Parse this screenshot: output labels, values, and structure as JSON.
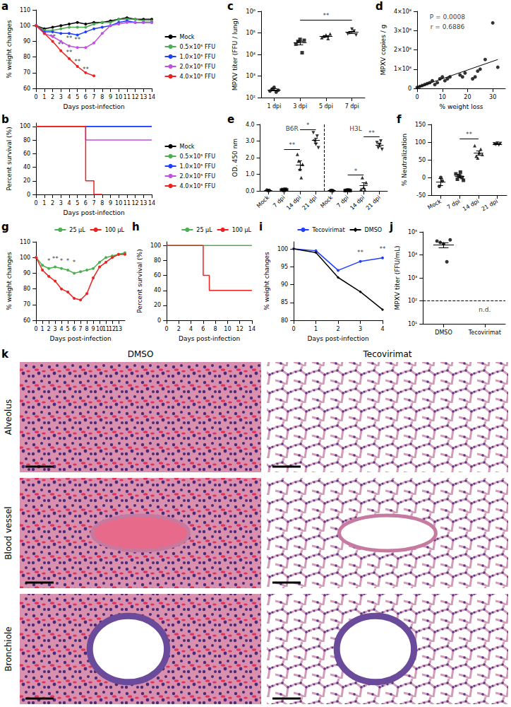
{
  "chart_data": [
    {
      "panel": "a",
      "type": "line",
      "marker": "circle",
      "grid": false,
      "legend": "right",
      "x": [
        0,
        1,
        2,
        3,
        4,
        5,
        6,
        7,
        8,
        9,
        10,
        11,
        12,
        13,
        14
      ],
      "xlim": [
        0,
        14
      ],
      "xticks": [
        0,
        1,
        2,
        3,
        4,
        5,
        6,
        7,
        8,
        9,
        10,
        11,
        12,
        13,
        14
      ],
      "ylim": [
        60,
        110
      ],
      "yticks": [
        60,
        70,
        80,
        90,
        100,
        110
      ],
      "x_label": "Days post-infection",
      "y_label": "% weight changes",
      "series": [
        {
          "name": "Mock",
          "color": "#000000",
          "values": [
            100,
            98,
            99,
            100,
            101,
            102,
            101,
            102,
            102,
            103,
            104,
            105,
            104,
            104,
            104
          ]
        },
        {
          "name": "0.5×10⁵ FFU",
          "color": "#4caf50",
          "values": [
            100,
            97,
            97,
            98,
            99,
            99,
            99,
            101,
            102,
            102,
            104,
            104,
            104,
            103,
            103
          ]
        },
        {
          "name": "1.0×10⁵ FFU",
          "color": "#1f3fff",
          "values": [
            100,
            96,
            96,
            95,
            95,
            94,
            96,
            98,
            99,
            100,
            102,
            103,
            102,
            102,
            102
          ]
        },
        {
          "name": "2.0×10⁵ FFU",
          "color": "#c050e0",
          "values": [
            100,
            95,
            93,
            90,
            87,
            86,
            86,
            89,
            95,
            100,
            101,
            102,
            102,
            102,
            102
          ]
        },
        {
          "name": "4.0×10⁵ FFU",
          "color": "#ee2020",
          "values": [
            100,
            95,
            90,
            84,
            79,
            74,
            70,
            68,
            null,
            null,
            null,
            null,
            null,
            null,
            null
          ]
        }
      ],
      "annotations": [
        {
          "x": 2,
          "y": 93,
          "text": "**"
        },
        {
          "x": 3,
          "y": 88,
          "text": "**"
        },
        {
          "x": 4,
          "y": 92,
          "text": "**"
        },
        {
          "x": 4,
          "y": 83,
          "text": "**"
        },
        {
          "x": 5,
          "y": 91,
          "text": "**"
        },
        {
          "x": 5,
          "y": 77,
          "text": "**"
        },
        {
          "x": 6,
          "y": 72,
          "text": "**"
        }
      ]
    },
    {
      "panel": "b",
      "type": "step",
      "marker": "none",
      "grid": false,
      "legend": "right",
      "x": [
        0,
        1,
        2,
        3,
        4,
        5,
        6,
        7,
        8,
        9,
        10,
        11,
        12,
        13,
        14
      ],
      "xlim": [
        0,
        14
      ],
      "xticks": [
        0,
        1,
        2,
        3,
        4,
        5,
        6,
        7,
        8,
        9,
        10,
        11,
        12,
        13,
        14
      ],
      "ylim": [
        0,
        105
      ],
      "yticks": [
        0,
        20,
        40,
        60,
        80,
        100
      ],
      "x_label": "Days post-infection",
      "y_label": "Percent survival (%)",
      "series": [
        {
          "name": "Mock",
          "color": "#000000",
          "values": [
            100,
            100,
            100,
            100,
            100,
            100,
            100,
            100,
            100,
            100,
            100,
            100,
            100,
            100,
            100
          ]
        },
        {
          "name": "0.5×10⁵ FFU",
          "color": "#4caf50",
          "values": [
            100,
            100,
            100,
            100,
            100,
            100,
            100,
            100,
            100,
            100,
            100,
            100,
            100,
            100,
            100
          ]
        },
        {
          "name": "1.0×10⁵ FFU",
          "color": "#1f3fff",
          "values": [
            100,
            100,
            100,
            100,
            100,
            100,
            100,
            100,
            100,
            100,
            100,
            100,
            100,
            100,
            100
          ]
        },
        {
          "name": "2.0×10⁵ FFU",
          "color": "#c050e0",
          "values": [
            100,
            100,
            100,
            100,
            100,
            100,
            80,
            80,
            80,
            80,
            80,
            80,
            80,
            80,
            80
          ]
        },
        {
          "name": "4.0×10⁵ FFU",
          "color": "#ee2020",
          "values": [
            100,
            100,
            100,
            100,
            100,
            100,
            20,
            0,
            null,
            null,
            null,
            null,
            null,
            null,
            null
          ]
        }
      ]
    },
    {
      "panel": "c",
      "type": "dot",
      "log": "y",
      "grid": false,
      "color": "#000000",
      "categories": [
        "1 dpi",
        "3 dpi",
        "5 dpi",
        "7 dpi"
      ],
      "markers": [
        "circle",
        "square",
        "triangle",
        "triangle_down"
      ],
      "points": [
        [
          200,
          250,
          300,
          180,
          220
        ],
        [
          30000,
          40000,
          50000,
          12000,
          45000
        ],
        [
          60000,
          70000,
          80000,
          55000,
          90000
        ],
        [
          90000,
          100000,
          150000,
          120000,
          80000
        ]
      ],
      "mean": [
        230,
        35000,
        71000,
        108000
      ],
      "sem": [
        25,
        7000,
        6000,
        12000
      ],
      "ylim": [
        100,
        1000000
      ],
      "yticks": [
        {
          "value": 100,
          "label": "10²"
        },
        {
          "value": 1000,
          "label": "10³"
        },
        {
          "value": 10000,
          "label": "10⁴"
        },
        {
          "value": 100000,
          "label": "10⁵"
        },
        {
          "value": 1000000,
          "label": "10⁶"
        }
      ],
      "y_label": "MPXV titer (FFU / lung)",
      "comparisons": [
        {
          "from": 1,
          "to": 3,
          "y": 400000,
          "text": "**"
        }
      ]
    },
    {
      "panel": "d",
      "type": "scatter",
      "grid": false,
      "color": "#000000",
      "marker": "circle",
      "x": [
        0,
        1,
        2,
        3,
        4,
        5,
        6,
        7,
        8,
        9,
        10,
        11,
        12,
        13,
        17,
        18,
        19,
        22,
        23,
        24,
        25,
        27,
        30,
        32
      ],
      "values": [
        5000000,
        10000000,
        15000000,
        20000000,
        25000000,
        30000000,
        40000000,
        20000000,
        30000000,
        50000000,
        60000000,
        40000000,
        50000000,
        60000000,
        70000000,
        60000000,
        80000000,
        50000000,
        60000000,
        90000000,
        100000000,
        150000000,
        340000000,
        110000000
      ],
      "fit": {
        "x": [
          0,
          32
        ],
        "y": [
          5000000,
          150000000
        ]
      },
      "xlim": [
        0,
        35
      ],
      "xticks": [
        0,
        10,
        20,
        30
      ],
      "ylim": [
        0,
        400000000
      ],
      "yticks": [
        0,
        {
          "value": 100000000,
          "label": "1×10⁸"
        },
        {
          "value": 200000000,
          "label": "2×10⁸"
        },
        {
          "value": 300000000,
          "label": "3×10⁸"
        },
        {
          "value": 400000000,
          "label": "4×10⁸"
        }
      ],
      "x_label": "% weight loss",
      "y_label": "MPXV copies / g",
      "annotations": [
        {
          "x": 12,
          "y": 370000000,
          "text": "P = 0.0008"
        },
        {
          "x": 12,
          "y": 320000000,
          "text": "r = 0.6886"
        }
      ]
    },
    {
      "panel": "e",
      "type": "dot",
      "grid": false,
      "color": "#000000",
      "categories": [
        "Mock",
        "7 dpi",
        "14 dpi",
        "21 dpi",
        "Mock",
        "7 dpi",
        "14 dpi",
        "21 dpi"
      ],
      "group_labels": [
        "B6R",
        "H3L"
      ],
      "markers": [
        "circle",
        "square",
        "triangle",
        "triangle_down",
        "circle",
        "square",
        "triangle",
        "triangle_down"
      ],
      "points": [
        [
          0.05,
          0.02,
          0.03
        ],
        [
          0.05,
          0.08,
          0.03,
          0.1,
          0.06
        ],
        [
          2.2,
          1.8,
          1.3,
          0.8,
          1.6
        ],
        [
          3.5,
          3.0,
          2.8,
          3.3,
          2.6
        ],
        [
          0.02,
          0.03,
          0.01
        ],
        [
          0.02,
          0.03,
          0.05,
          0.04,
          0.02
        ],
        [
          0.1,
          0.8,
          0.2,
          0.05,
          0.5
        ],
        [
          2.9,
          2.6,
          2.8,
          3.0,
          2.5
        ]
      ],
      "mean": [
        0.03,
        0.06,
        1.55,
        3.04,
        0.02,
        0.03,
        0.33,
        2.76
      ],
      "sem": [
        0.01,
        0.01,
        0.25,
        0.16,
        0.005,
        0.01,
        0.15,
        0.09
      ],
      "ylim": [
        0,
        4
      ],
      "yticks": [
        {
          "value": 0,
          "label": "0.0"
        },
        {
          "value": 1,
          "label": "1.0"
        },
        {
          "value": 2,
          "label": "2.0"
        },
        {
          "value": 3,
          "label": "3.0"
        },
        {
          "value": 4,
          "label": "4.0"
        }
      ],
      "y_label": "OD. 450 nm",
      "comparisons": [
        {
          "from": 1,
          "to": 2,
          "y": 2.5,
          "text": "**"
        },
        {
          "from": 2,
          "to": 3,
          "y": 3.7,
          "text": "*"
        },
        {
          "from": 5,
          "to": 6,
          "y": 0.95,
          "text": "*"
        },
        {
          "from": 6,
          "to": 7,
          "y": 3.25,
          "text": "**"
        }
      ]
    },
    {
      "panel": "f",
      "type": "dot",
      "grid": false,
      "color": "#000000",
      "categories": [
        "Mock",
        "7 dpi",
        "14 dpi",
        "21 dpi"
      ],
      "markers": [
        "circle",
        "square",
        "triangle",
        "triangle_down"
      ],
      "points": [
        [
          -25,
          0,
          -10
        ],
        [
          10,
          -5,
          5,
          15,
          0,
          -8
        ],
        [
          90,
          60,
          55,
          70,
          80,
          65
        ],
        [
          95,
          93,
          97,
          92,
          96
        ]
      ],
      "mean": [
        -12,
        3,
        70,
        94
      ],
      "sem": [
        10,
        4,
        6,
        1
      ],
      "ylim": [
        -50,
        150
      ],
      "yticks": [
        -50,
        0,
        50,
        100,
        150
      ],
      "y_label": "% Neutralization",
      "comparisons": [
        {
          "from": 1,
          "to": 2,
          "y": 110,
          "text": "**"
        }
      ]
    },
    {
      "panel": "g",
      "type": "line",
      "marker": "circle",
      "grid": false,
      "legend": "top-right",
      "x": [
        0,
        1,
        2,
        3,
        4,
        5,
        6,
        7,
        8,
        9,
        10,
        11,
        12,
        13,
        14
      ],
      "xlim": [
        0,
        14
      ],
      "xticks": [
        0,
        1,
        2,
        3,
        4,
        5,
        6,
        7,
        8,
        9,
        10,
        11,
        12,
        13,
        14
      ],
      "ylim": [
        60,
        110
      ],
      "yticks": [
        60,
        70,
        80,
        90,
        100,
        110
      ],
      "x_label": "Days post-infection",
      "y_label": "% weight changes",
      "series": [
        {
          "name": "25 μL",
          "color": "#4caf50",
          "values": [
            100,
            95,
            93,
            94,
            93,
            92,
            90,
            91,
            92,
            93,
            97,
            100,
            101,
            102,
            103
          ]
        },
        {
          "name": "100 μL",
          "color": "#ee2020",
          "values": [
            100,
            92,
            88,
            85,
            80,
            78,
            74,
            73,
            77,
            87,
            94,
            97,
            100,
            102,
            102
          ]
        }
      ],
      "annotations": [
        {
          "x": 2,
          "y": 98,
          "text": "*"
        },
        {
          "x": 3,
          "y": 99,
          "text": "**"
        },
        {
          "x": 4,
          "y": 98,
          "text": "*"
        },
        {
          "x": 5,
          "y": 98,
          "text": "*"
        },
        {
          "x": 6,
          "y": 97,
          "text": "*"
        }
      ]
    },
    {
      "panel": "h",
      "type": "step",
      "marker": "none",
      "grid": false,
      "legend": "top-right",
      "x": [
        0,
        1,
        2,
        3,
        4,
        5,
        6,
        7,
        8,
        9,
        10,
        11,
        12,
        13,
        14
      ],
      "xlim": [
        0,
        14
      ],
      "xticks": [
        0,
        2,
        4,
        6,
        8,
        10,
        12,
        14
      ],
      "ylim": [
        0,
        105
      ],
      "yticks": [
        0,
        20,
        40,
        60,
        80,
        100
      ],
      "x_label": "Days post-infection",
      "y_label": "Percent survival (%)",
      "series": [
        {
          "name": "25 μL",
          "color": "#4caf50",
          "values": [
            100,
            100,
            100,
            100,
            100,
            100,
            100,
            100,
            100,
            100,
            100,
            100,
            100,
            100,
            100
          ]
        },
        {
          "name": "100 μL",
          "color": "#ee2020",
          "values": [
            100,
            100,
            100,
            100,
            100,
            100,
            60,
            40,
            40,
            40,
            40,
            40,
            40,
            40,
            40
          ]
        }
      ]
    },
    {
      "panel": "i",
      "type": "line",
      "grid": false,
      "legend": "top-right",
      "x": [
        0,
        1,
        2,
        3,
        4
      ],
      "xlim": [
        0,
        4
      ],
      "xticks": [
        0,
        1,
        2,
        3,
        4
      ],
      "ylim": [
        80,
        102
      ],
      "yticks": [
        80,
        85,
        90,
        95,
        100
      ],
      "x_label": "Days post-infection",
      "y_label": "% weight changes",
      "series": [
        {
          "name": "Tecovirimat",
          "color": "#1f3fff",
          "marker": "circle",
          "values": [
            100,
            99.5,
            94,
            96.5,
            97.5
          ]
        },
        {
          "name": "DMSO",
          "color": "#000000",
          "marker": "diamond",
          "values": [
            100,
            99,
            92,
            88,
            83
          ]
        }
      ],
      "annotations": [
        {
          "x": 3,
          "y": 99,
          "text": "**"
        },
        {
          "x": 4,
          "y": 100,
          "text": "**"
        }
      ]
    },
    {
      "panel": "j",
      "type": "dot",
      "log": "y",
      "grid": false,
      "color": "#000000",
      "categories": [
        "DMSO",
        "Tecovirimat"
      ],
      "markers": [
        "circle",
        "circle"
      ],
      "points": [
        [
          40000,
          35000,
          30000,
          5000,
          45000
        ],
        []
      ],
      "mean": [
        28000,
        null
      ],
      "sem": [
        7000,
        null
      ],
      "ylim": [
        10,
        100000
      ],
      "yticks": [
        {
          "value": 10,
          "label": "10¹"
        },
        {
          "value": 100,
          "label": "10²"
        },
        {
          "value": 1000,
          "label": "10³"
        },
        {
          "value": 10000,
          "label": "10⁴"
        },
        {
          "value": 100000,
          "label": "10⁵"
        }
      ],
      "y_label": "MPXV titer (FFU/mL)",
      "detection_limit": 100,
      "annotations": [
        {
          "category": 1,
          "y": 40,
          "text": "n.d."
        }
      ]
    }
  ],
  "panel_k": {
    "panel": "k",
    "columns": [
      "DMSO",
      "Tecovirimat"
    ],
    "rows": [
      "Alveolus",
      "Blood vessel",
      "Bronchiole"
    ]
  }
}
